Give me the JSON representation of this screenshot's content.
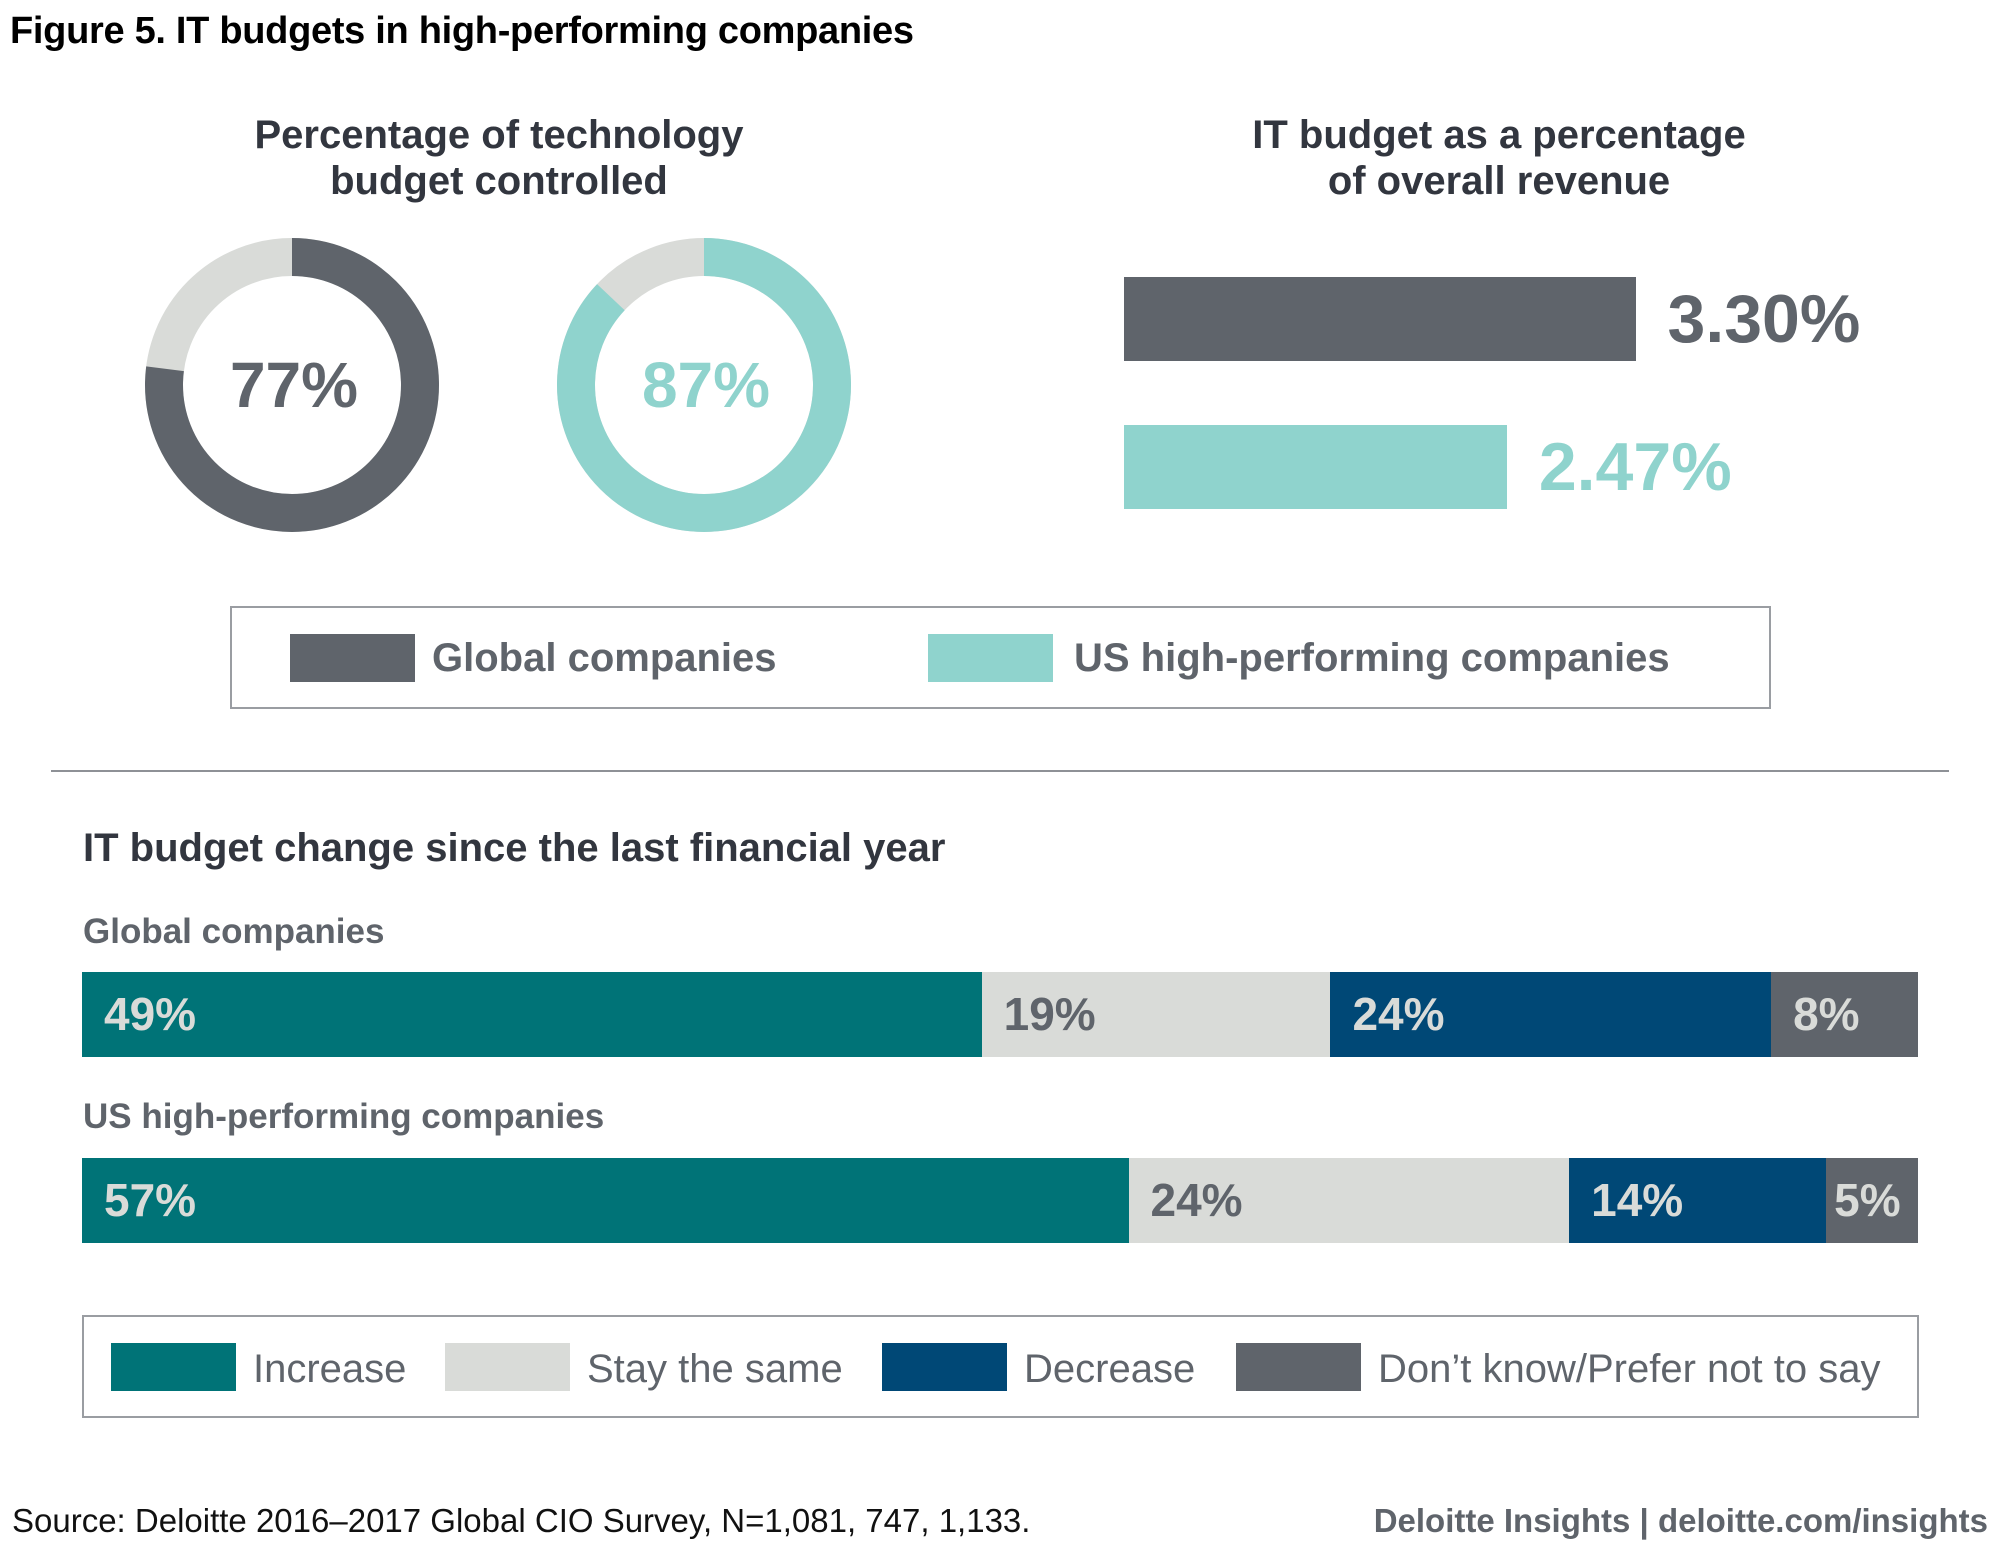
{
  "title": "Figure 5. IT budgets in high-performing companies",
  "colors": {
    "global": "#5f646b",
    "us_high": "#8fd3cd",
    "remainder": "#d9dbd8",
    "increase": "#007377",
    "stay": "#d9dbd8",
    "decrease": "#004876",
    "dont_know": "#5f646b",
    "heading": "#32363f",
    "label_light": "#d9dbd8",
    "label_dark": "#5f646b"
  },
  "legend_top": {
    "items": [
      {
        "label": "Global companies",
        "color": "#5f646b"
      },
      {
        "label": "US high-performing companies",
        "color": "#8fd3cd"
      }
    ]
  },
  "legend_bottom": {
    "items": [
      {
        "label": "Increase",
        "color": "#007377"
      },
      {
        "label": "Stay the same",
        "color": "#d9dbd8"
      },
      {
        "label": "Decrease",
        "color": "#004876"
      },
      {
        "label": "Don’t know/Prefer not to say",
        "color": "#5f646b"
      }
    ]
  },
  "footer": {
    "source": "Source: Deloitte 2016–2017 Global CIO Survey, N=1,081, 747, 1,133.",
    "brand": "Deloitte Insights | deloitte.com/insights"
  },
  "chart_data": [
    {
      "type": "pie",
      "title": "Percentage of technology budget controlled",
      "title_lines": [
        "Percentage of technology",
        "budget controlled"
      ],
      "series": [
        {
          "name": "Global companies",
          "value": 77,
          "label": "77%"
        },
        {
          "name": "US high-performing companies",
          "value": 87,
          "label": "87%"
        }
      ],
      "max": 100
    },
    {
      "type": "bar",
      "orientation": "horizontal",
      "title": "IT budget as a percentage of overall revenue",
      "title_lines": [
        "IT budget as a percentage",
        "of overall revenue"
      ],
      "categories": [
        "Global companies",
        "US high-performing companies"
      ],
      "values": [
        3.3,
        2.47
      ],
      "labels": [
        "3.30%",
        "2.47%"
      ]
    },
    {
      "type": "bar",
      "orientation": "horizontal",
      "stacked": true,
      "title": "IT budget change since the last financial year",
      "categories": [
        "Global companies",
        "US high-performing companies"
      ],
      "series": [
        {
          "name": "Increase",
          "values": [
            49,
            57
          ]
        },
        {
          "name": "Stay the same",
          "values": [
            19,
            24
          ]
        },
        {
          "name": "Decrease",
          "values": [
            24,
            14
          ]
        },
        {
          "name": "Don’t know/Prefer not to say",
          "values": [
            8,
            5
          ]
        }
      ],
      "labels": [
        [
          "49%",
          "19%",
          "24%",
          "8%"
        ],
        [
          "57%",
          "24%",
          "14%",
          "5%"
        ]
      ],
      "legend": "bottom"
    }
  ]
}
